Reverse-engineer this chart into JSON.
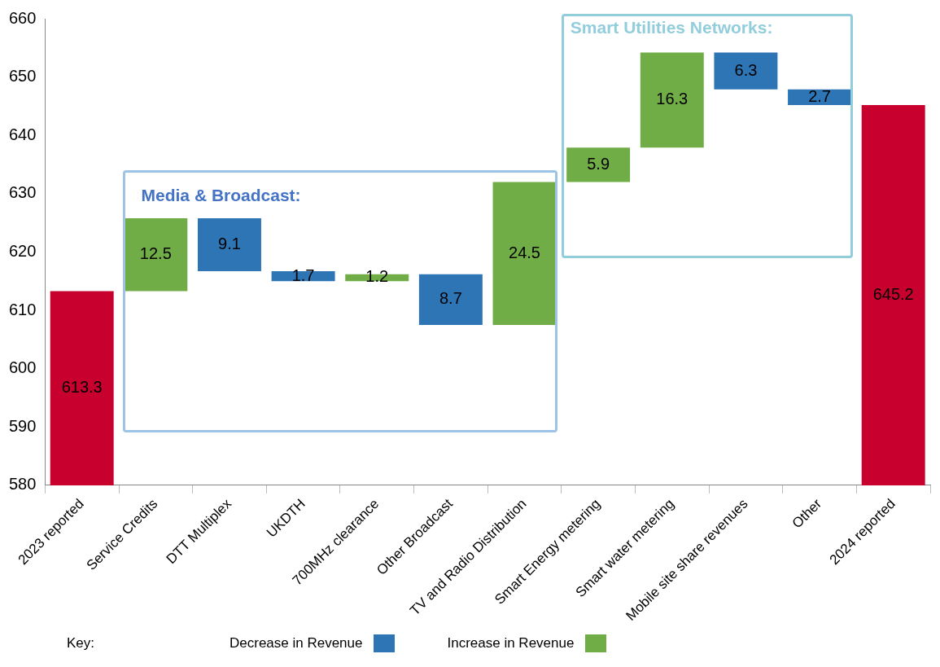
{
  "chart_data": {
    "type": "bar",
    "categories": [
      "2023 reported",
      "Service Credits",
      "DTT Multiplex",
      "UKDTH",
      "700MHz clearance",
      "Other Broadcast",
      "TV and Radio Distribution",
      "Smart Energy metering",
      "Smart water metering",
      "Mobile site share revenues",
      "Other",
      "2024 reported"
    ],
    "series": [
      {
        "color": "#c8002d",
        "values": [
          613.3,
          null,
          null,
          null,
          null,
          null,
          null,
          null,
          null,
          null,
          null,
          645.2
        ]
      },
      {
        "name": "Decrease in Revenue",
        "color": "#2e75b6",
        "values": [
          null,
          null,
          9.1,
          1.7,
          null,
          8.7,
          null,
          null,
          null,
          6.3,
          2.7,
          null
        ],
        "base": [
          null,
          null,
          616.7,
          615.0,
          null,
          607.5,
          null,
          null,
          null,
          647.9,
          645.2,
          null
        ]
      },
      {
        "name": "Increase in Revenue",
        "color": "#70ad47",
        "values": [
          null,
          12.5,
          null,
          null,
          1.2,
          null,
          24.5,
          5.9,
          16.3,
          null,
          null,
          null
        ],
        "base": [
          null,
          613.3,
          null,
          null,
          615.0,
          null,
          607.5,
          632.0,
          637.9,
          null,
          null,
          null
        ]
      }
    ],
    "ylim": [
      580,
      660
    ],
    "yticks": [
      580,
      590,
      600,
      610,
      620,
      630,
      640,
      650,
      660
    ],
    "grid": false,
    "data_labels": true,
    "legend": "bottom",
    "legend_title": "Key:",
    "annotations": [
      "Media & Broadcast:",
      "Smart Utilities Networks:"
    ]
  }
}
